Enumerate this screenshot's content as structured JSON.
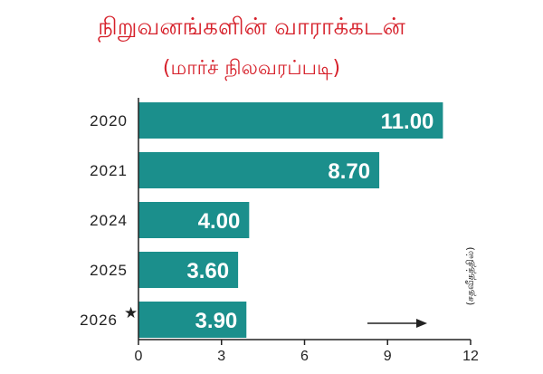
{
  "chart_data": {
    "type": "bar",
    "orientation": "horizontal",
    "title": "நிறுவனங்களின் வாராக்கடன்",
    "subtitle": "(மார்ச் நிலவரப்படி)",
    "categories": [
      "2020",
      "2021",
      "2024",
      "2025",
      "2026"
    ],
    "category_marks": [
      "",
      "",
      "",
      "",
      "★"
    ],
    "values": [
      11.0,
      8.7,
      4.0,
      3.6,
      3.9
    ],
    "value_labels": [
      "11.00",
      "8.70",
      "4.00",
      "3.60",
      "3.90"
    ],
    "xlim": [
      0,
      12
    ],
    "xticks": [
      0,
      3,
      6,
      9,
      12
    ],
    "xtick_labels": [
      "0",
      "3",
      "6",
      "9",
      "12"
    ],
    "unit_note": "(சதவீதத்தில்)",
    "grid": false,
    "legend": "none",
    "bar_color": "#1b8f8c",
    "title_color": "#d6202a",
    "axis_color": "#222222"
  }
}
